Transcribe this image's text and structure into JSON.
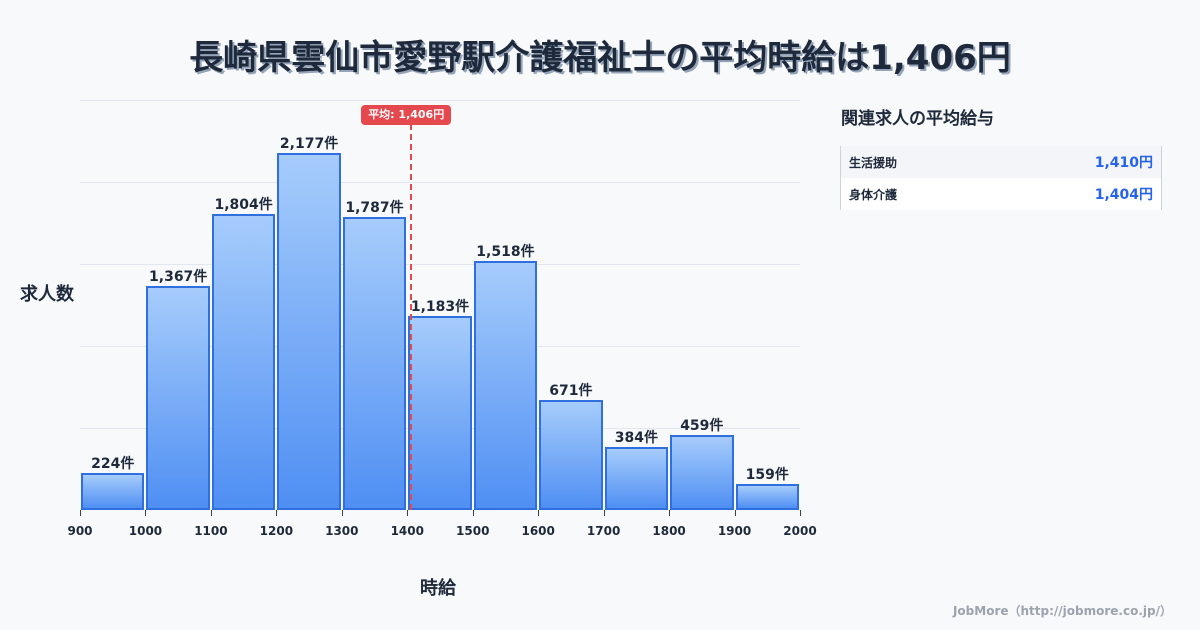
{
  "title": "長崎県雲仙市愛野駅介護福祉士の平均時給は1,406円",
  "chart_data": {
    "type": "bar",
    "title": "長崎県雲仙市愛野駅介護福祉士の平均時給は1,406円",
    "xlabel": "時給",
    "ylabel": "求人数",
    "categories": [
      "900-1000",
      "1000-1100",
      "1100-1200",
      "1200-1300",
      "1300-1400",
      "1400-1500",
      "1500-1600",
      "1600-1700",
      "1700-1800",
      "1800-1900",
      "1900-2000"
    ],
    "bin_edges": [
      900,
      1000,
      1100,
      1200,
      1300,
      1400,
      1500,
      1600,
      1700,
      1800,
      1900,
      2000
    ],
    "values": [
      224,
      1367,
      1804,
      2177,
      1787,
      1183,
      1518,
      671,
      384,
      459,
      159
    ],
    "value_labels": [
      "224件",
      "1,367件",
      "1,804件",
      "2,177件",
      "1,787件",
      "1,183件",
      "1,518件",
      "671件",
      "384件",
      "459件",
      "159件"
    ],
    "x_tick_labels": [
      "900",
      "1000",
      "1100",
      "1200",
      "1300",
      "1400",
      "1500",
      "1600",
      "1700",
      "1800",
      "1900",
      "2000"
    ],
    "ylim": [
      0,
      2500
    ],
    "xlim": [
      900,
      2000
    ],
    "grid": true,
    "average_line": {
      "value": 1406,
      "label": "平均: 1,406円",
      "color": "#e5484d"
    },
    "bar_color": "#4f8ff3",
    "bar_border_color": "#2f6fe0"
  },
  "sidebar": {
    "title": "関連求人の平均給与",
    "items": [
      {
        "name": "生活援助",
        "value": "1,410円"
      },
      {
        "name": "身体介護",
        "value": "1,404円"
      }
    ]
  },
  "footer": "JobMore（http://jobmore.co.jp/）"
}
